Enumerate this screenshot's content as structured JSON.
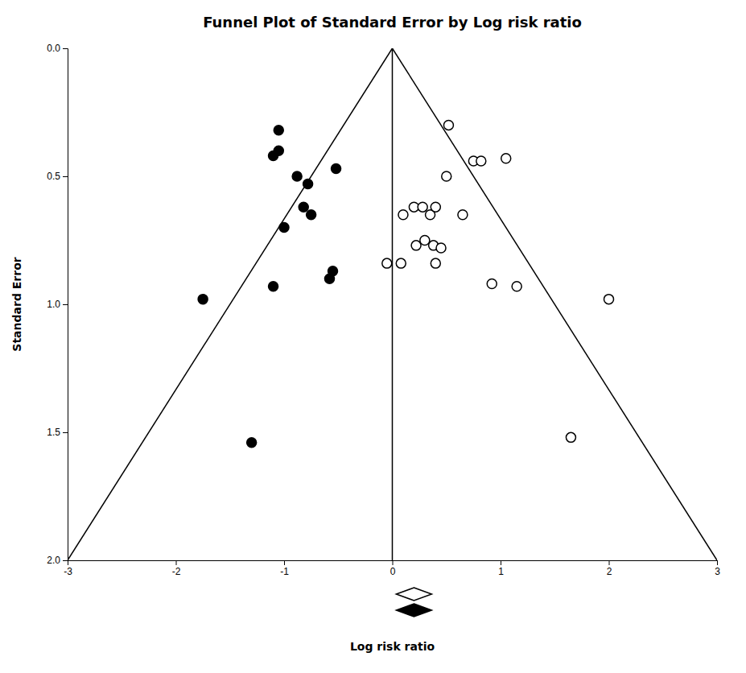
{
  "chart_data": {
    "type": "scatter",
    "title": "Funnel Plot of Standard Error by Log risk ratio",
    "x_label": "Log risk ratio",
    "y_label": "Standard Error",
    "xlim": [
      -3,
      3
    ],
    "ylim": [
      2.0,
      0.0
    ],
    "xticks": [
      -3,
      -2,
      -1,
      0,
      1,
      2,
      3
    ],
    "yticks": [
      {
        "value": 0.0,
        "label": "0.0"
      },
      0.5,
      {
        "value": 1.0,
        "label": "1.0"
      },
      1.5,
      {
        "value": 2.0,
        "label": "2.0"
      }
    ],
    "grid": false,
    "series": [
      {
        "type": "scatter",
        "marker": "filled",
        "color": "#000000",
        "x": [
          -0.55,
          -0.58,
          -0.82,
          -0.75,
          -0.88,
          -0.78,
          -1.05,
          -1.1,
          -1.05,
          -1.0,
          -0.52,
          -1.75,
          -1.1,
          -1.3
        ],
        "values": [
          0.87,
          0.9,
          0.62,
          0.65,
          0.5,
          0.53,
          0.4,
          0.42,
          0.32,
          0.7,
          0.47,
          0.98,
          0.93,
          1.54
        ]
      },
      {
        "type": "scatter",
        "marker": "open",
        "color": "#000000",
        "x": [
          -0.05,
          0.08,
          0.4,
          0.22,
          0.3,
          0.38,
          0.45,
          0.1,
          0.2,
          0.28,
          0.35,
          0.4,
          0.5,
          0.65,
          0.75,
          0.82,
          0.52,
          1.05,
          0.92,
          1.15,
          2.0,
          1.65
        ],
        "values": [
          0.84,
          0.84,
          0.84,
          0.77,
          0.75,
          0.77,
          0.78,
          0.65,
          0.62,
          0.62,
          0.65,
          0.62,
          0.5,
          0.65,
          0.44,
          0.44,
          0.3,
          0.43,
          0.92,
          0.93,
          0.98,
          1.52
        ]
      }
    ],
    "lines": [
      {
        "type": "line",
        "color": "#000000",
        "x": [
          0.0,
          -3.0
        ],
        "values": [
          0,
          2.0
        ]
      },
      {
        "type": "line",
        "color": "#000000",
        "x": [
          0.0,
          3.0
        ],
        "values": [
          0,
          2.0
        ]
      },
      {
        "type": "line",
        "color": "#000000",
        "x": [
          0,
          0
        ],
        "values": [
          0,
          2.0
        ]
      }
    ],
    "diamonds": [
      {
        "marker": "open",
        "x": 0.2
      },
      {
        "marker": "filled",
        "x": 0.2
      }
    ]
  }
}
